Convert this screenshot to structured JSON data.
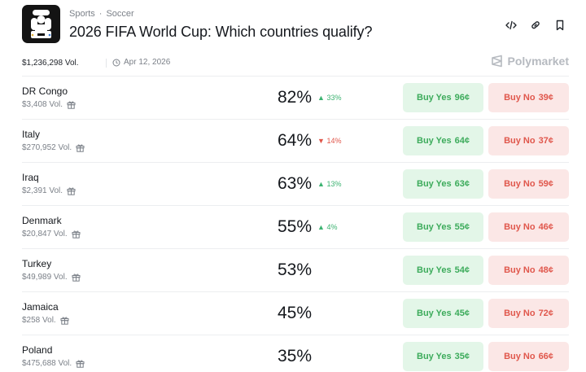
{
  "header": {
    "breadcrumb": [
      "Sports",
      "Soccer"
    ],
    "title": "2026 FIFA World Cup: Which countries qualify?",
    "icons": [
      "embed-icon",
      "link-icon",
      "bookmark-icon"
    ]
  },
  "meta": {
    "volume": "$1,236,298 Vol.",
    "date": "Apr 12, 2026",
    "brand": "Polymarket"
  },
  "colors": {
    "yes_bg": "#e3f6e8",
    "yes_text": "#3cab5b",
    "no_bg": "#fbe7e6",
    "no_text": "#e0574c",
    "up": "#3cb371",
    "down": "#e0564a"
  },
  "outcomes": [
    {
      "name": "DR Congo",
      "volume": "$3,408 Vol.",
      "chance": "82%",
      "change": "33%",
      "direction": "up",
      "yes_label": "Buy Yes",
      "yes_price": "96¢",
      "no_label": "Buy No",
      "no_price": "39¢"
    },
    {
      "name": "Italy",
      "volume": "$270,952 Vol.",
      "chance": "64%",
      "change": "14%",
      "direction": "down",
      "yes_label": "Buy Yes",
      "yes_price": "64¢",
      "no_label": "Buy No",
      "no_price": "37¢"
    },
    {
      "name": "Iraq",
      "volume": "$2,391 Vol.",
      "chance": "63%",
      "change": "13%",
      "direction": "up",
      "yes_label": "Buy Yes",
      "yes_price": "63¢",
      "no_label": "Buy No",
      "no_price": "59¢"
    },
    {
      "name": "Denmark",
      "volume": "$20,847 Vol.",
      "chance": "55%",
      "change": "4%",
      "direction": "up",
      "yes_label": "Buy Yes",
      "yes_price": "55¢",
      "no_label": "Buy No",
      "no_price": "46¢"
    },
    {
      "name": "Turkey",
      "volume": "$49,989 Vol.",
      "chance": "53%",
      "change": "",
      "direction": "",
      "yes_label": "Buy Yes",
      "yes_price": "54¢",
      "no_label": "Buy No",
      "no_price": "48¢"
    },
    {
      "name": "Jamaica",
      "volume": "$258 Vol.",
      "chance": "45%",
      "change": "",
      "direction": "",
      "yes_label": "Buy Yes",
      "yes_price": "45¢",
      "no_label": "Buy No",
      "no_price": "72¢"
    },
    {
      "name": "Poland",
      "volume": "$475,688 Vol.",
      "chance": "35%",
      "change": "",
      "direction": "",
      "yes_label": "Buy Yes",
      "yes_price": "35¢",
      "no_label": "Buy No",
      "no_price": "66¢"
    }
  ]
}
